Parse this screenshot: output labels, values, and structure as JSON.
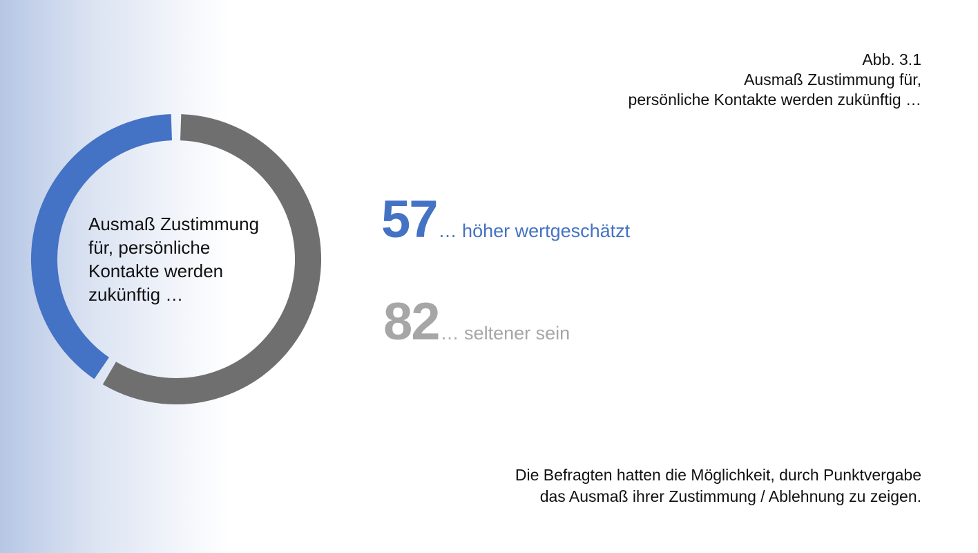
{
  "figure_title": {
    "line1": "Abb. 3.1",
    "line2": "Ausmaß Zustimmung für,",
    "line3": "persönliche Kontakte werden zukünftig  …"
  },
  "chart_data": {
    "type": "pie",
    "variant": "donut",
    "center_label": [
      "Ausmaß Zustimmung",
      "für, persönliche",
      "Kontakte werden",
      "zukünftig  …"
    ],
    "slices": [
      {
        "value": 57,
        "color": "#4472c4"
      },
      {
        "value": 82,
        "color": "#6f6f6f"
      }
    ]
  },
  "stats": [
    {
      "number": "57",
      "text": "… höher wertgeschätzt",
      "color": "#4472c4"
    },
    {
      "number": "82",
      "text": "… seltener sein",
      "color": "#a6a6a6"
    }
  ],
  "footnote": {
    "line1": "Die Befragten hatten die Möglichkeit, durch Punktvergabe",
    "line2": "das Ausmaß ihrer Zustimmung / Ablehnung zu zeigen."
  }
}
